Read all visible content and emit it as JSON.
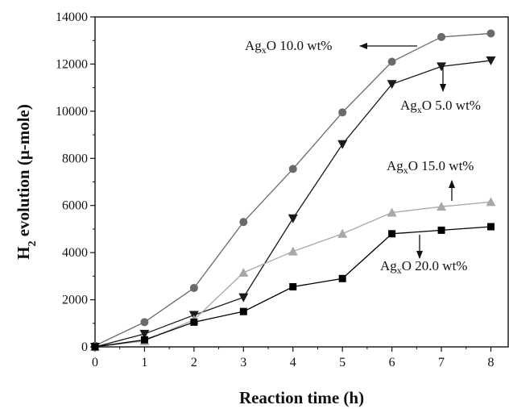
{
  "chart_data": {
    "type": "line",
    "title": "",
    "xlabel": "Reaction time (h)",
    "ylabel": {
      "prefix": "H",
      "sub": "2",
      "rest": " evolution (μ-mole)"
    },
    "x": [
      0,
      1,
      2,
      3,
      4,
      5,
      6,
      7,
      8
    ],
    "xlim": [
      0,
      8.35
    ],
    "ylim": [
      0,
      14000
    ],
    "xticks": [
      "0",
      "1",
      "2",
      "3",
      "4",
      "5",
      "6",
      "7",
      "8"
    ],
    "yticks": [
      "0",
      "2000",
      "4000",
      "6000",
      "8000",
      "10000",
      "12000",
      "14000"
    ],
    "grid": false,
    "legend": "annotations",
    "series": [
      {
        "key": "s10",
        "marker": "circle",
        "color": "#6a6a6a",
        "line": "#6a6a6a",
        "values": [
          50,
          1050,
          2500,
          5300,
          7550,
          9950,
          12100,
          13150,
          13300
        ]
      },
      {
        "key": "s5",
        "marker": "triangle-down",
        "color": "#1a1a1a",
        "line": "#1a1a1a",
        "values": [
          0,
          550,
          1350,
          2100,
          5450,
          8600,
          11150,
          11900,
          12150
        ]
      },
      {
        "key": "s15",
        "marker": "triangle-up",
        "color": "#a8a8a8",
        "line": "#a8a8a8",
        "values": [
          0,
          250,
          1150,
          3150,
          4050,
          4800,
          5700,
          5950,
          6150
        ]
      },
      {
        "key": "s20",
        "marker": "square",
        "color": "#000000",
        "line": "#000000",
        "values": [
          0,
          300,
          1050,
          1500,
          2550,
          2900,
          4800,
          4950,
          5100
        ]
      }
    ],
    "annotations": [
      {
        "key": "a10",
        "pre": "Ag",
        "sub": "x",
        "post": "O 10.0 wt%"
      },
      {
        "key": "a5",
        "pre": "Ag",
        "sub": "x",
        "post": "O 5.0 wt%"
      },
      {
        "key": "a15",
        "pre": "Ag",
        "sub": "x",
        "post": "O 15.0 wt%"
      },
      {
        "key": "a20",
        "pre": "Ag",
        "sub": "x",
        "post": "O 20.0 wt%"
      }
    ]
  }
}
